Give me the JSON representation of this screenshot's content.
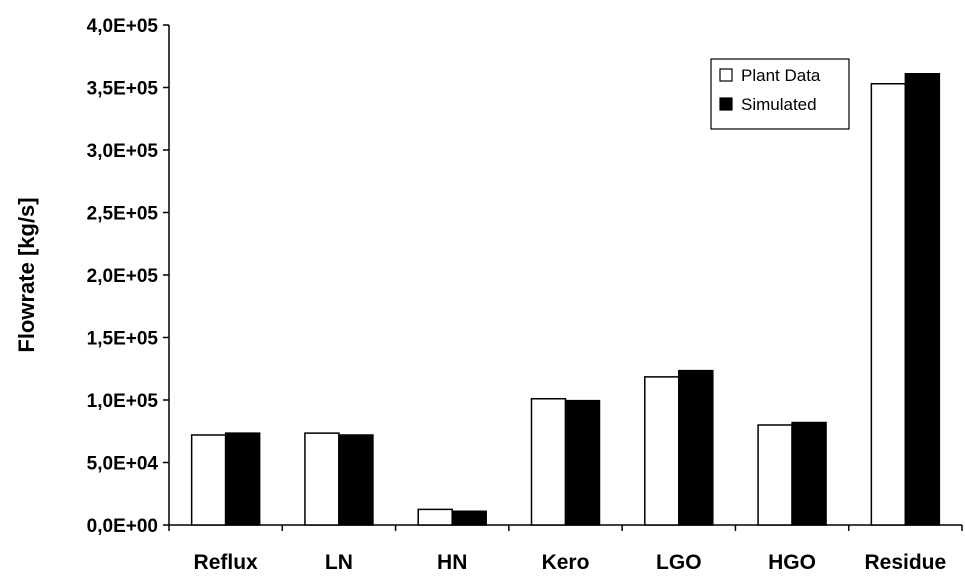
{
  "chart_data": {
    "type": "bar",
    "ylabel": "Flowrate [kg/s]",
    "xlabel": "",
    "categories": [
      "Reflux",
      "LN",
      "HN",
      "Kero",
      "LGO",
      "HGO",
      "Residue"
    ],
    "ylim": [
      0,
      400000
    ],
    "yticks": [
      0,
      50000,
      100000,
      150000,
      200000,
      250000,
      300000,
      350000,
      400000
    ],
    "ytick_labels": [
      "0,0E+00",
      "5,0E+04",
      "1,0E+05",
      "1,5E+05",
      "2,0E+05",
      "2,5E+05",
      "3,0E+05",
      "3,5E+05",
      "4,0E+05"
    ],
    "grid": false,
    "legend_position": "top-right",
    "series": [
      {
        "name": "Plant Data",
        "color": "#ffffff",
        "values": [
          72000,
          73500,
          12500,
          101000,
          118500,
          80000,
          353000
        ]
      },
      {
        "name": "Simulated",
        "color": "#000000",
        "values": [
          73500,
          72000,
          11000,
          99500,
          123500,
          82000,
          361000
        ]
      }
    ]
  }
}
